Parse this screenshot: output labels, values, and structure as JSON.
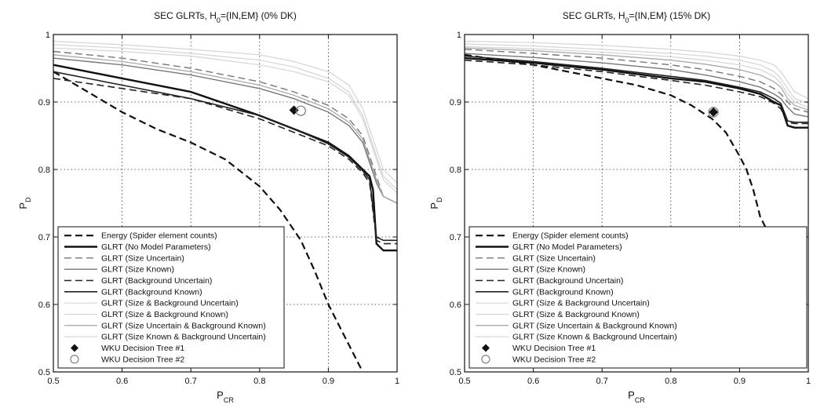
{
  "chart_data": [
    {
      "type": "line",
      "title": "SEC GLRTs, H",
      "title_sub": "0",
      "title_suffix": "={IN,EM} (0% DK)",
      "xlabel": "P",
      "xlabel_sub": "CR",
      "ylabel": "P",
      "ylabel_sub": "D",
      "xlim": [
        0.5,
        1.0
      ],
      "ylim": [
        0.5,
        1.0
      ],
      "xticks": [
        "0.5",
        "0.6",
        "0.7",
        "0.8",
        "0.9",
        "1"
      ],
      "yticks": [
        "0.5",
        "0.6",
        "0.7",
        "0.8",
        "0.9",
        "1"
      ],
      "grid": true,
      "legend_position": "bottom-left",
      "series": [
        {
          "name": "Energy (Spider element counts)",
          "color": "#111111",
          "dash": "dashed",
          "width": 2.2,
          "x": [
            0.5,
            0.55,
            0.6,
            0.65,
            0.7,
            0.75,
            0.8,
            0.83,
            0.86,
            0.88,
            0.9,
            0.92,
            0.94,
            0.95
          ],
          "y": [
            0.945,
            0.915,
            0.885,
            0.86,
            0.84,
            0.815,
            0.775,
            0.74,
            0.695,
            0.65,
            0.6,
            0.56,
            0.52,
            0.5
          ]
        },
        {
          "name": "GLRT (No Model Parameters)",
          "color": "#111111",
          "dash": "solid",
          "width": 2.4,
          "x": [
            0.5,
            0.6,
            0.7,
            0.8,
            0.85,
            0.9,
            0.93,
            0.95,
            0.96,
            0.965,
            0.97,
            0.98,
            0.99,
            1.0
          ],
          "y": [
            0.955,
            0.935,
            0.915,
            0.88,
            0.86,
            0.84,
            0.82,
            0.8,
            0.79,
            0.77,
            0.69,
            0.68,
            0.68,
            0.68
          ]
        },
        {
          "name": "GLRT (Size Uncertain)",
          "color": "#777777",
          "dash": "dashed",
          "width": 1.4,
          "x": [
            0.5,
            0.6,
            0.7,
            0.8,
            0.85,
            0.9,
            0.93,
            0.95,
            0.96,
            0.97,
            0.98,
            1.0
          ],
          "y": [
            0.975,
            0.965,
            0.95,
            0.93,
            0.915,
            0.895,
            0.875,
            0.85,
            0.82,
            0.79,
            0.76,
            0.75
          ]
        },
        {
          "name": "GLRT (Size Known)",
          "color": "#777777",
          "dash": "solid",
          "width": 1.4,
          "x": [
            0.5,
            0.6,
            0.7,
            0.8,
            0.85,
            0.9,
            0.93,
            0.95,
            0.96,
            0.97,
            0.98,
            1.0
          ],
          "y": [
            0.965,
            0.955,
            0.94,
            0.92,
            0.905,
            0.885,
            0.865,
            0.84,
            0.81,
            0.78,
            0.76,
            0.75
          ]
        },
        {
          "name": "GLRT (Background Uncertain)",
          "color": "#222222",
          "dash": "dashed",
          "width": 1.6,
          "x": [
            0.5,
            0.6,
            0.7,
            0.8,
            0.85,
            0.9,
            0.93,
            0.95,
            0.96,
            0.97,
            0.98,
            1.0
          ],
          "y": [
            0.935,
            0.92,
            0.905,
            0.875,
            0.855,
            0.835,
            0.815,
            0.795,
            0.78,
            0.695,
            0.69,
            0.69
          ]
        },
        {
          "name": "GLRT (Background Known)",
          "color": "#222222",
          "dash": "solid",
          "width": 1.6,
          "x": [
            0.5,
            0.6,
            0.7,
            0.8,
            0.85,
            0.9,
            0.93,
            0.95,
            0.96,
            0.97,
            0.98,
            1.0
          ],
          "y": [
            0.945,
            0.925,
            0.905,
            0.88,
            0.86,
            0.838,
            0.818,
            0.798,
            0.785,
            0.7,
            0.695,
            0.695
          ]
        },
        {
          "name": "GLRT (Size & Background Uncertain)",
          "color": "#d4d4d4",
          "dash": "solid",
          "width": 1.2,
          "x": [
            0.5,
            0.6,
            0.7,
            0.8,
            0.85,
            0.9,
            0.93,
            0.95,
            0.96,
            0.97,
            0.98,
            1.0
          ],
          "y": [
            0.99,
            0.985,
            0.978,
            0.97,
            0.96,
            0.945,
            0.925,
            0.89,
            0.86,
            0.83,
            0.8,
            0.78
          ]
        },
        {
          "name": "GLRT (Size & Background Known)",
          "color": "#d4d4d4",
          "dash": "solid",
          "width": 1.2,
          "x": [
            0.5,
            0.6,
            0.7,
            0.8,
            0.85,
            0.9,
            0.93,
            0.95,
            0.96,
            0.97,
            0.98,
            1.0
          ],
          "y": [
            0.985,
            0.98,
            0.972,
            0.962,
            0.952,
            0.935,
            0.915,
            0.88,
            0.85,
            0.82,
            0.79,
            0.77
          ]
        },
        {
          "name": "GLRT (Size Uncertain & Background Known)",
          "color": "#aaaaaa",
          "dash": "solid",
          "width": 1.3,
          "x": [
            0.5,
            0.6,
            0.7,
            0.8,
            0.85,
            0.9,
            0.93,
            0.95,
            0.96,
            0.97,
            0.98,
            1.0
          ],
          "y": [
            0.97,
            0.96,
            0.945,
            0.925,
            0.91,
            0.89,
            0.87,
            0.845,
            0.815,
            0.785,
            0.76,
            0.75
          ]
        },
        {
          "name": "GLRT (Size Known & Background Uncertain)",
          "color": "#d4d4d4",
          "dash": "solid",
          "width": 1.2,
          "x": [
            0.5,
            0.6,
            0.7,
            0.8,
            0.85,
            0.9,
            0.93,
            0.95,
            0.96,
            0.97,
            0.98,
            1.0
          ],
          "y": [
            0.98,
            0.975,
            0.968,
            0.955,
            0.945,
            0.93,
            0.91,
            0.875,
            0.845,
            0.815,
            0.785,
            0.765
          ]
        }
      ],
      "markers": [
        {
          "name": "WKU Decision Tree #1",
          "shape": "filled-diamond",
          "x": 0.85,
          "y": 0.888
        },
        {
          "name": "WKU Decision Tree #2",
          "shape": "open-circle",
          "x": 0.86,
          "y": 0.887
        }
      ]
    },
    {
      "type": "line",
      "title": "SEC GLRTs, H",
      "title_sub": "0",
      "title_suffix": "={IN,EM} (15% DK)",
      "xlabel": "P",
      "xlabel_sub": "CR",
      "ylabel": "P",
      "ylabel_sub": "D",
      "xlim": [
        0.5,
        1.0
      ],
      "ylim": [
        0.5,
        1.0
      ],
      "xticks": [
        "0.5",
        "0.6",
        "0.7",
        "0.8",
        "0.9",
        "1"
      ],
      "yticks": [
        "0.5",
        "0.6",
        "0.7",
        "0.8",
        "0.9",
        "1"
      ],
      "grid": true,
      "legend_position": "bottom-left",
      "series": [
        {
          "name": "Energy (Spider element counts)",
          "color": "#111111",
          "dash": "dashed",
          "width": 2.2,
          "x": [
            0.5,
            0.6,
            0.7,
            0.75,
            0.8,
            0.83,
            0.86,
            0.88,
            0.9,
            0.91,
            0.92,
            0.93,
            0.94,
            0.95,
            0.96,
            0.97,
            0.98,
            0.99
          ],
          "y": [
            0.97,
            0.955,
            0.935,
            0.925,
            0.91,
            0.895,
            0.875,
            0.855,
            0.82,
            0.8,
            0.77,
            0.73,
            0.71,
            0.7,
            0.65,
            0.6,
            0.55,
            0.545
          ]
        },
        {
          "name": "GLRT (No Model Parameters)",
          "color": "#111111",
          "dash": "solid",
          "width": 2.4,
          "x": [
            0.5,
            0.6,
            0.7,
            0.8,
            0.85,
            0.9,
            0.93,
            0.95,
            0.96,
            0.97,
            0.98,
            1.0
          ],
          "y": [
            0.965,
            0.958,
            0.948,
            0.935,
            0.93,
            0.92,
            0.912,
            0.9,
            0.895,
            0.865,
            0.862,
            0.862
          ]
        },
        {
          "name": "GLRT (Size Uncertain)",
          "color": "#777777",
          "dash": "dashed",
          "width": 1.4,
          "x": [
            0.5,
            0.6,
            0.7,
            0.8,
            0.85,
            0.9,
            0.93,
            0.95,
            0.96,
            0.97,
            0.98,
            1.0
          ],
          "y": [
            0.978,
            0.972,
            0.965,
            0.955,
            0.948,
            0.938,
            0.93,
            0.92,
            0.912,
            0.9,
            0.89,
            0.885
          ]
        },
        {
          "name": "GLRT (Size Known)",
          "color": "#777777",
          "dash": "solid",
          "width": 1.4,
          "x": [
            0.5,
            0.6,
            0.7,
            0.8,
            0.85,
            0.9,
            0.93,
            0.95,
            0.96,
            0.97,
            0.98,
            1.0
          ],
          "y": [
            0.972,
            0.966,
            0.958,
            0.948,
            0.94,
            0.93,
            0.922,
            0.912,
            0.905,
            0.892,
            0.882,
            0.878
          ]
        },
        {
          "name": "GLRT (Background Uncertain)",
          "color": "#222222",
          "dash": "dashed",
          "width": 1.6,
          "x": [
            0.5,
            0.6,
            0.7,
            0.8,
            0.85,
            0.9,
            0.93,
            0.95,
            0.96,
            0.97,
            0.98,
            1.0
          ],
          "y": [
            0.962,
            0.955,
            0.945,
            0.932,
            0.925,
            0.915,
            0.908,
            0.898,
            0.89,
            0.87,
            0.868,
            0.868
          ]
        },
        {
          "name": "GLRT (Background Known)",
          "color": "#222222",
          "dash": "solid",
          "width": 1.6,
          "x": [
            0.5,
            0.6,
            0.7,
            0.8,
            0.85,
            0.9,
            0.93,
            0.95,
            0.96,
            0.97,
            0.98,
            1.0
          ],
          "y": [
            0.968,
            0.96,
            0.95,
            0.938,
            0.932,
            0.922,
            0.915,
            0.905,
            0.898,
            0.872,
            0.87,
            0.87
          ]
        },
        {
          "name": "GLRT (Size & Background Uncertain)",
          "color": "#d4d4d4",
          "dash": "solid",
          "width": 1.2,
          "x": [
            0.5,
            0.6,
            0.7,
            0.8,
            0.85,
            0.9,
            0.93,
            0.95,
            0.96,
            0.97,
            0.98,
            1.0
          ],
          "y": [
            0.99,
            0.988,
            0.984,
            0.978,
            0.974,
            0.968,
            0.962,
            0.955,
            0.945,
            0.93,
            0.915,
            0.905
          ]
        },
        {
          "name": "GLRT (Size & Background Known)",
          "color": "#d4d4d4",
          "dash": "solid",
          "width": 1.2,
          "x": [
            0.5,
            0.6,
            0.7,
            0.8,
            0.85,
            0.9,
            0.93,
            0.95,
            0.96,
            0.97,
            0.98,
            1.0
          ],
          "y": [
            0.986,
            0.983,
            0.978,
            0.972,
            0.968,
            0.962,
            0.955,
            0.945,
            0.935,
            0.92,
            0.905,
            0.898
          ]
        },
        {
          "name": "GLRT (Size Uncertain & Background Known)",
          "color": "#aaaaaa",
          "dash": "solid",
          "width": 1.3,
          "x": [
            0.5,
            0.6,
            0.7,
            0.8,
            0.85,
            0.9,
            0.93,
            0.95,
            0.96,
            0.97,
            0.98,
            1.0
          ],
          "y": [
            0.98,
            0.976,
            0.97,
            0.962,
            0.956,
            0.948,
            0.94,
            0.93,
            0.922,
            0.905,
            0.895,
            0.888
          ]
        },
        {
          "name": "GLRT (Size Known & Background Uncertain)",
          "color": "#d4d4d4",
          "dash": "solid",
          "width": 1.2,
          "x": [
            0.5,
            0.6,
            0.7,
            0.8,
            0.85,
            0.9,
            0.93,
            0.95,
            0.96,
            0.97,
            0.98,
            1.0
          ],
          "y": [
            0.982,
            0.979,
            0.974,
            0.967,
            0.962,
            0.955,
            0.948,
            0.938,
            0.928,
            0.912,
            0.9,
            0.892
          ]
        }
      ],
      "markers": [
        {
          "name": "WKU Decision Tree #1",
          "shape": "filled-diamond",
          "x": 0.862,
          "y": 0.885
        },
        {
          "name": "WKU Decision Tree #2",
          "shape": "open-circle",
          "x": 0.862,
          "y": 0.885
        }
      ]
    }
  ]
}
